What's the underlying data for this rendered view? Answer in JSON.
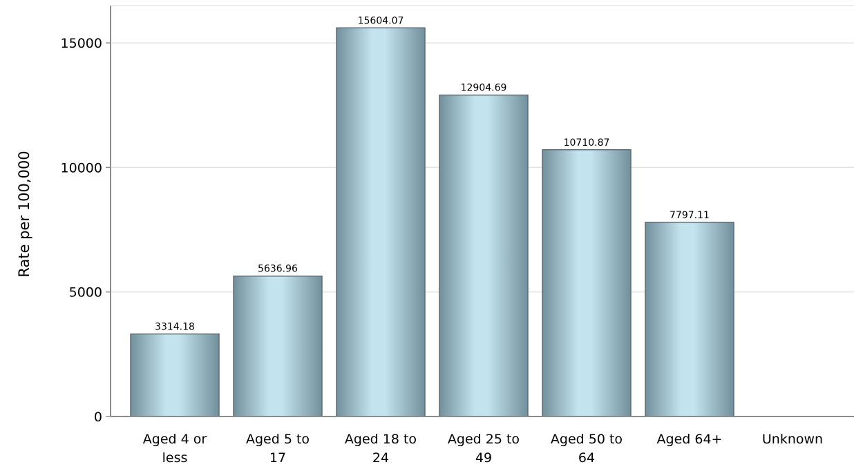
{
  "chart_data": {
    "type": "bar",
    "title": "",
    "xlabel": "",
    "ylabel": "Rate per 100,000",
    "categories": [
      [
        "Aged 4 or",
        "less"
      ],
      [
        "Aged 5 to",
        "17"
      ],
      [
        "Aged 18 to",
        "24"
      ],
      [
        "Aged 25 to",
        "49"
      ],
      [
        "Aged 50 to",
        "64"
      ],
      [
        "Aged 64+"
      ],
      [
        "Unknown"
      ]
    ],
    "values": [
      3314.18,
      5636.96,
      15604.07,
      12904.69,
      10710.87,
      7797.11,
      null
    ],
    "value_labels": [
      "3314.18",
      "5636.96",
      "15604.07",
      "12904.69",
      "10710.87",
      "7797.11",
      ""
    ],
    "ylim": [
      0,
      16500
    ],
    "yticks": [
      0,
      5000,
      10000,
      15000
    ],
    "grid": true,
    "legend": "none",
    "colors": {
      "bar_center": "#c3e3ee",
      "bar_edge": "#71909c",
      "bar_outline": "#5d6d73",
      "grid": "#e3e3e3",
      "axis": "#8c8c8c"
    }
  }
}
